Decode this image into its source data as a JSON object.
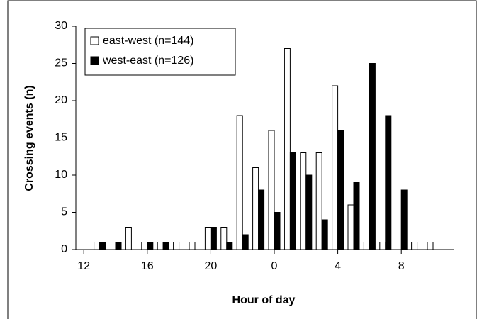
{
  "chart_data": {
    "type": "bar",
    "x_label": "Hour of day",
    "y_label": "Crossing events (n)",
    "categories": [
      "12",
      null,
      null,
      null,
      "16",
      null,
      null,
      null,
      "20",
      null,
      null,
      null,
      "0",
      null,
      null,
      null,
      "4",
      null,
      null,
      null,
      "8",
      null,
      null
    ],
    "series": [
      {
        "name": "east-west (n=144)",
        "color": "#ffffff",
        "values": [
          0,
          1,
          0,
          3,
          1,
          1,
          1,
          1,
          3,
          3,
          18,
          11,
          16,
          27,
          13,
          13,
          22,
          6,
          1,
          1,
          0,
          1,
          1
        ]
      },
      {
        "name": "west-east (n=126)",
        "color": "#000000",
        "values": [
          0,
          1,
          1,
          0,
          1,
          1,
          0,
          0,
          3,
          1,
          2,
          8,
          5,
          13,
          10,
          4,
          16,
          9,
          25,
          18,
          8,
          0,
          0
        ]
      }
    ],
    "ylim": [
      0,
      30
    ],
    "yticks": [
      0,
      5,
      10,
      15,
      20,
      25,
      30
    ],
    "legend": "upper left"
  }
}
